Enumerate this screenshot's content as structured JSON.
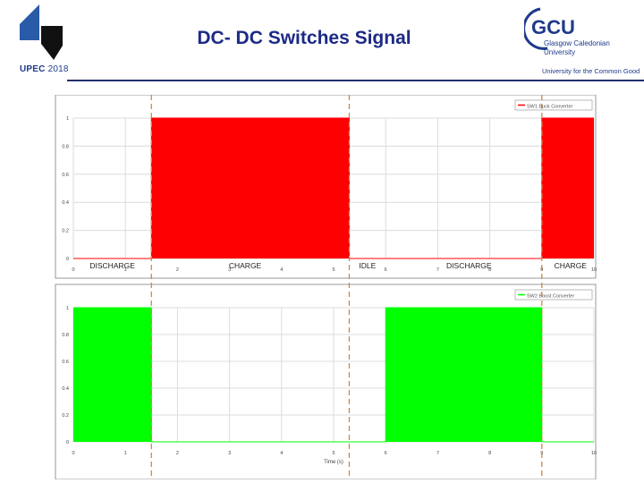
{
  "header": {
    "title": "DC- DC Switches Signal",
    "upec_label_bold": "UPEC",
    "upec_label_year": "2018",
    "gcu_letters": "GCU",
    "gcu_university": "Glasgow Caledonian University",
    "gcu_tagline": "University for the Common Good",
    "colors": {
      "title": "#1d2a86",
      "rule": "#22306f",
      "logo_blue": "#2a5ba8",
      "logo_black": "#111111"
    }
  },
  "chart_data": [
    {
      "type": "area",
      "title": "",
      "xlabel": "",
      "ylabel": "",
      "xlim": [
        0,
        10
      ],
      "ylim": [
        0,
        1
      ],
      "x_ticks": [
        "0",
        "1",
        "2",
        "3",
        "4",
        "5",
        "6",
        "7",
        "8",
        "9",
        "10"
      ],
      "y_ticks": [
        "0",
        "0.2",
        "0.4",
        "0.6",
        "0.8",
        "1"
      ],
      "grid": true,
      "legend_position": "top-right",
      "series": [
        {
          "name": "SW1 Buck Converter",
          "color": "#ff0000",
          "step_x": [
            0,
            1.5,
            1.5,
            5.3,
            5.3,
            9.0,
            9.0,
            10
          ],
          "step_y": [
            0,
            0,
            1,
            1,
            0,
            0,
            1,
            1
          ]
        }
      ],
      "mode_labels": [
        {
          "text": "DISCHARGE",
          "x": 0.75
        },
        {
          "text": "CHARGE",
          "x": 3.3
        },
        {
          "text": "IDLE",
          "x": 5.65
        },
        {
          "text": "DISCHARGE",
          "x": 7.6
        },
        {
          "text": "CHARGE",
          "x": 9.55
        }
      ],
      "dividers_x": [
        1.5,
        5.3,
        9.0
      ],
      "divider_color": "#c98a52"
    },
    {
      "type": "area",
      "title": "",
      "xlabel": "Time (s)",
      "ylabel": "",
      "xlim": [
        0,
        10
      ],
      "ylim": [
        0,
        1
      ],
      "x_ticks": [
        "0",
        "1",
        "2",
        "3",
        "4",
        "5",
        "6",
        "7",
        "8",
        "9",
        "10"
      ],
      "y_ticks": [
        "0",
        "0.2",
        "0.4",
        "0.6",
        "0.8",
        "1"
      ],
      "grid": true,
      "legend_position": "top-right",
      "series": [
        {
          "name": "SW2 Boost Converter",
          "color": "#00ff00",
          "step_x": [
            0,
            1.5,
            1.5,
            6.0,
            6.0,
            9.0,
            9.0,
            10
          ],
          "step_y": [
            1,
            1,
            0,
            0,
            1,
            1,
            0,
            0
          ]
        }
      ],
      "dividers_x": [
        1.5,
        5.3,
        9.0
      ],
      "divider_color": "#c98a52"
    }
  ]
}
